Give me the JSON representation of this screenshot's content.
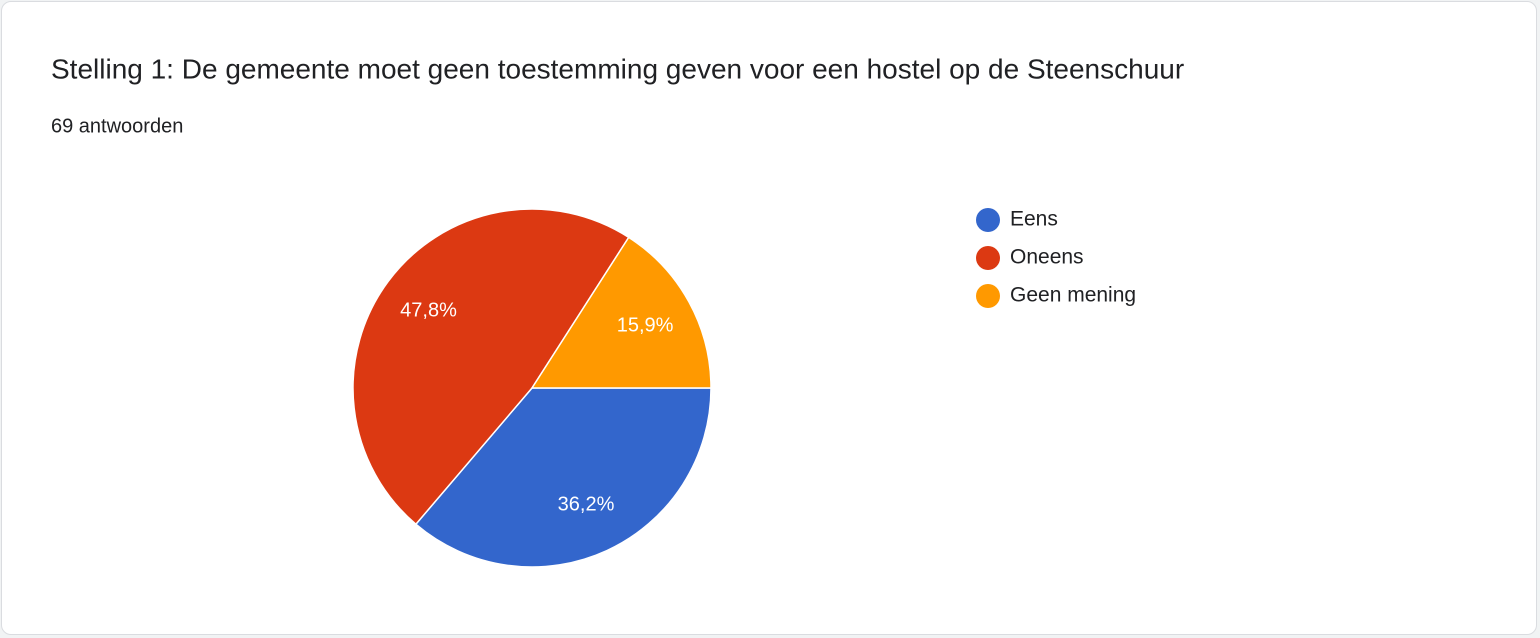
{
  "chart_data": {
    "type": "pie",
    "title": "Stelling 1: De gemeente moet geen toestemming geven voor een hostel op de Steenschuur",
    "subtitle": "69 antwoorden",
    "categories": [
      "Eens",
      "Oneens",
      "Geen mening"
    ],
    "values": [
      36.2,
      47.8,
      15.9
    ],
    "value_labels": [
      "36,2%",
      "47,8%",
      "15,9%"
    ],
    "colors": [
      "#3366cc",
      "#dc3912",
      "#ff9900"
    ],
    "legend": "right"
  }
}
